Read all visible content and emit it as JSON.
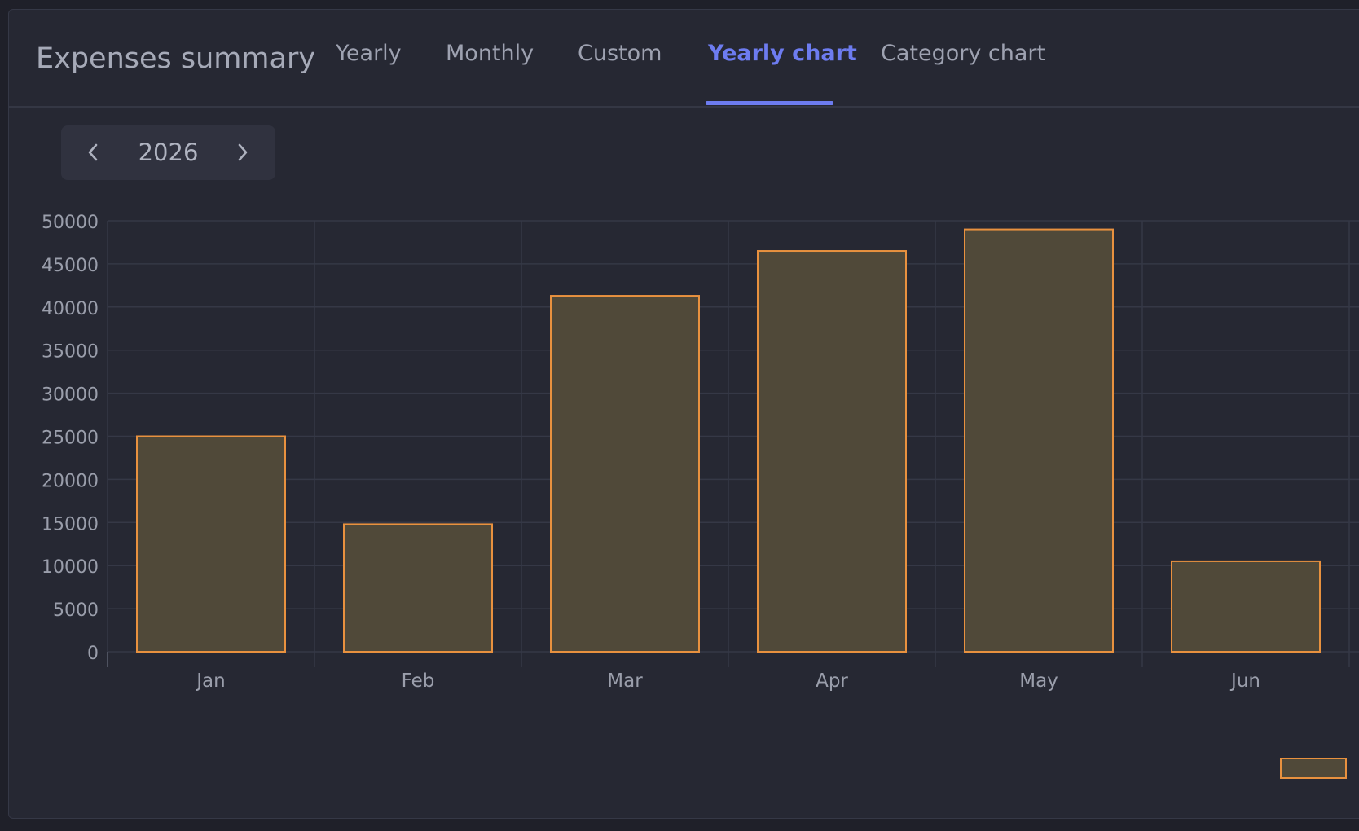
{
  "card": {
    "title": "Expenses summary"
  },
  "tabs": [
    {
      "label": "Yearly",
      "active": false
    },
    {
      "label": "Monthly",
      "active": false
    },
    {
      "label": "Custom",
      "active": false
    },
    {
      "label": "Yearly chart",
      "active": true
    },
    {
      "label": "Category chart",
      "active": false
    }
  ],
  "year_picker": {
    "value": "2026",
    "prev_icon": "chevron-left-icon",
    "next_icon": "chevron-right-icon"
  },
  "colors": {
    "accent": "#6d7cf0",
    "bar_border": "#e8913f",
    "bar_fill": "#504939"
  },
  "chart_data": {
    "type": "bar",
    "categories": [
      "Jan",
      "Feb",
      "Mar",
      "Apr",
      "May",
      "Jun"
    ],
    "values": [
      25000,
      14800,
      41300,
      46500,
      49000,
      10500
    ],
    "ylim": [
      0,
      50000
    ],
    "yticks": [
      0,
      5000,
      10000,
      15000,
      20000,
      25000,
      30000,
      35000,
      40000,
      45000,
      50000
    ],
    "title": "",
    "xlabel": "",
    "ylabel": "",
    "grid": true,
    "legend": "bottom-right"
  }
}
